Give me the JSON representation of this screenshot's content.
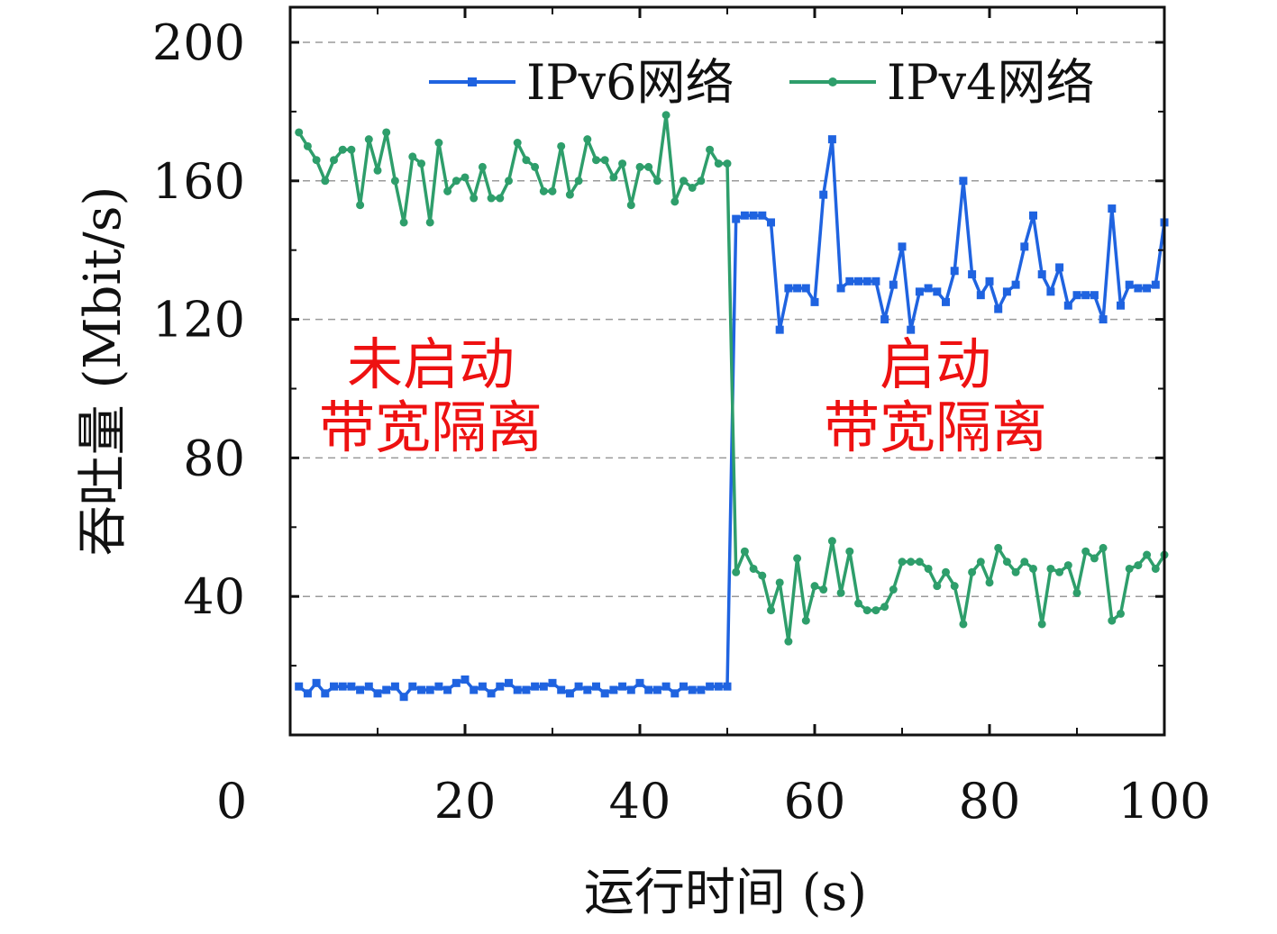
{
  "chart_data": {
    "type": "line",
    "xlabel": "运行时间 (s)",
    "ylabel": "吞吐量 (Mbit/s)",
    "xlim": [
      0,
      100
    ],
    "ylim": [
      0,
      200
    ],
    "x_ticks": [
      "0",
      "20",
      "40",
      "60",
      "80",
      "100"
    ],
    "y_ticks": [
      "40",
      "80",
      "120",
      "160",
      "200"
    ],
    "grid": "horizontal dashed",
    "legend_position": "top-right",
    "colors": {
      "ipv6": "#1f63e0",
      "ipv4": "#2e9e6b",
      "annotation": "#ee1111"
    },
    "series": [
      {
        "name": "IPv6网络",
        "color": "#1f63e0",
        "marker": "square",
        "x": [
          1,
          2,
          3,
          4,
          5,
          6,
          7,
          8,
          9,
          10,
          11,
          12,
          13,
          14,
          15,
          16,
          17,
          18,
          19,
          20,
          21,
          22,
          23,
          24,
          25,
          26,
          27,
          28,
          29,
          30,
          31,
          32,
          33,
          34,
          35,
          36,
          37,
          38,
          39,
          40,
          41,
          42,
          43,
          44,
          45,
          46,
          47,
          48,
          49,
          50,
          51,
          52,
          53,
          54,
          55,
          56,
          57,
          58,
          59,
          60,
          61,
          62,
          63,
          64,
          65,
          66,
          67,
          68,
          69,
          70,
          71,
          72,
          73,
          74,
          75,
          76,
          77,
          78,
          79,
          80,
          81,
          82,
          83,
          84,
          85,
          86,
          87,
          88,
          89,
          90,
          91,
          92,
          93,
          94,
          95,
          96,
          97,
          98,
          99,
          100
        ],
        "values": [
          14,
          12,
          15,
          12,
          14,
          14,
          14,
          13,
          14,
          12,
          13,
          14,
          11,
          14,
          13,
          13,
          14,
          13,
          15,
          16,
          13,
          14,
          12,
          14,
          15,
          13,
          13,
          14,
          14,
          15,
          13,
          12,
          14,
          13,
          14,
          12,
          13,
          14,
          13,
          15,
          13,
          13,
          14,
          12,
          14,
          13,
          13,
          14,
          14,
          14,
          149,
          150,
          150,
          150,
          148,
          117,
          129,
          129,
          129,
          125,
          156,
          172,
          129,
          131,
          131,
          131,
          131,
          120,
          130,
          141,
          117,
          128,
          129,
          128,
          125,
          134,
          160,
          133,
          127,
          131,
          123,
          128,
          130,
          141,
          150,
          133,
          128,
          135,
          124,
          127,
          127,
          127,
          120,
          152,
          124,
          130,
          129,
          129,
          130,
          148
        ]
      },
      {
        "name": "IPv4网络",
        "color": "#2e9e6b",
        "marker": "circle",
        "x": [
          1,
          2,
          3,
          4,
          5,
          6,
          7,
          8,
          9,
          10,
          11,
          12,
          13,
          14,
          15,
          16,
          17,
          18,
          19,
          20,
          21,
          22,
          23,
          24,
          25,
          26,
          27,
          28,
          29,
          30,
          31,
          32,
          33,
          34,
          35,
          36,
          37,
          38,
          39,
          40,
          41,
          42,
          43,
          44,
          45,
          46,
          47,
          48,
          49,
          50,
          51,
          52,
          53,
          54,
          55,
          56,
          57,
          58,
          59,
          60,
          61,
          62,
          63,
          64,
          65,
          66,
          67,
          68,
          69,
          70,
          71,
          72,
          73,
          74,
          75,
          76,
          77,
          78,
          79,
          80,
          81,
          82,
          83,
          84,
          85,
          86,
          87,
          88,
          89,
          90,
          91,
          92,
          93,
          94,
          95,
          96,
          97,
          98,
          99,
          100
        ],
        "values": [
          174,
          170,
          166,
          160,
          166,
          169,
          169,
          153,
          172,
          163,
          174,
          160,
          148,
          167,
          165,
          148,
          171,
          157,
          160,
          161,
          155,
          164,
          155,
          155,
          160,
          171,
          166,
          164,
          157,
          157,
          170,
          156,
          160,
          172,
          166,
          166,
          161,
          165,
          153,
          164,
          164,
          160,
          179,
          154,
          160,
          158,
          160,
          169,
          165,
          165,
          47,
          53,
          48,
          46,
          36,
          44,
          27,
          51,
          33,
          43,
          42,
          56,
          41,
          53,
          38,
          36,
          36,
          37,
          42,
          50,
          50,
          50,
          48,
          43,
          47,
          43,
          32,
          47,
          50,
          44,
          54,
          50,
          47,
          50,
          48,
          32,
          48,
          47,
          49,
          41,
          53,
          51,
          54,
          33,
          35,
          48,
          49,
          52,
          48,
          52
        ]
      }
    ],
    "annotations": [
      {
        "lines": [
          "未启动",
          "带宽隔离"
        ]
      },
      {
        "lines": [
          "启动",
          "带宽隔离"
        ]
      }
    ]
  }
}
